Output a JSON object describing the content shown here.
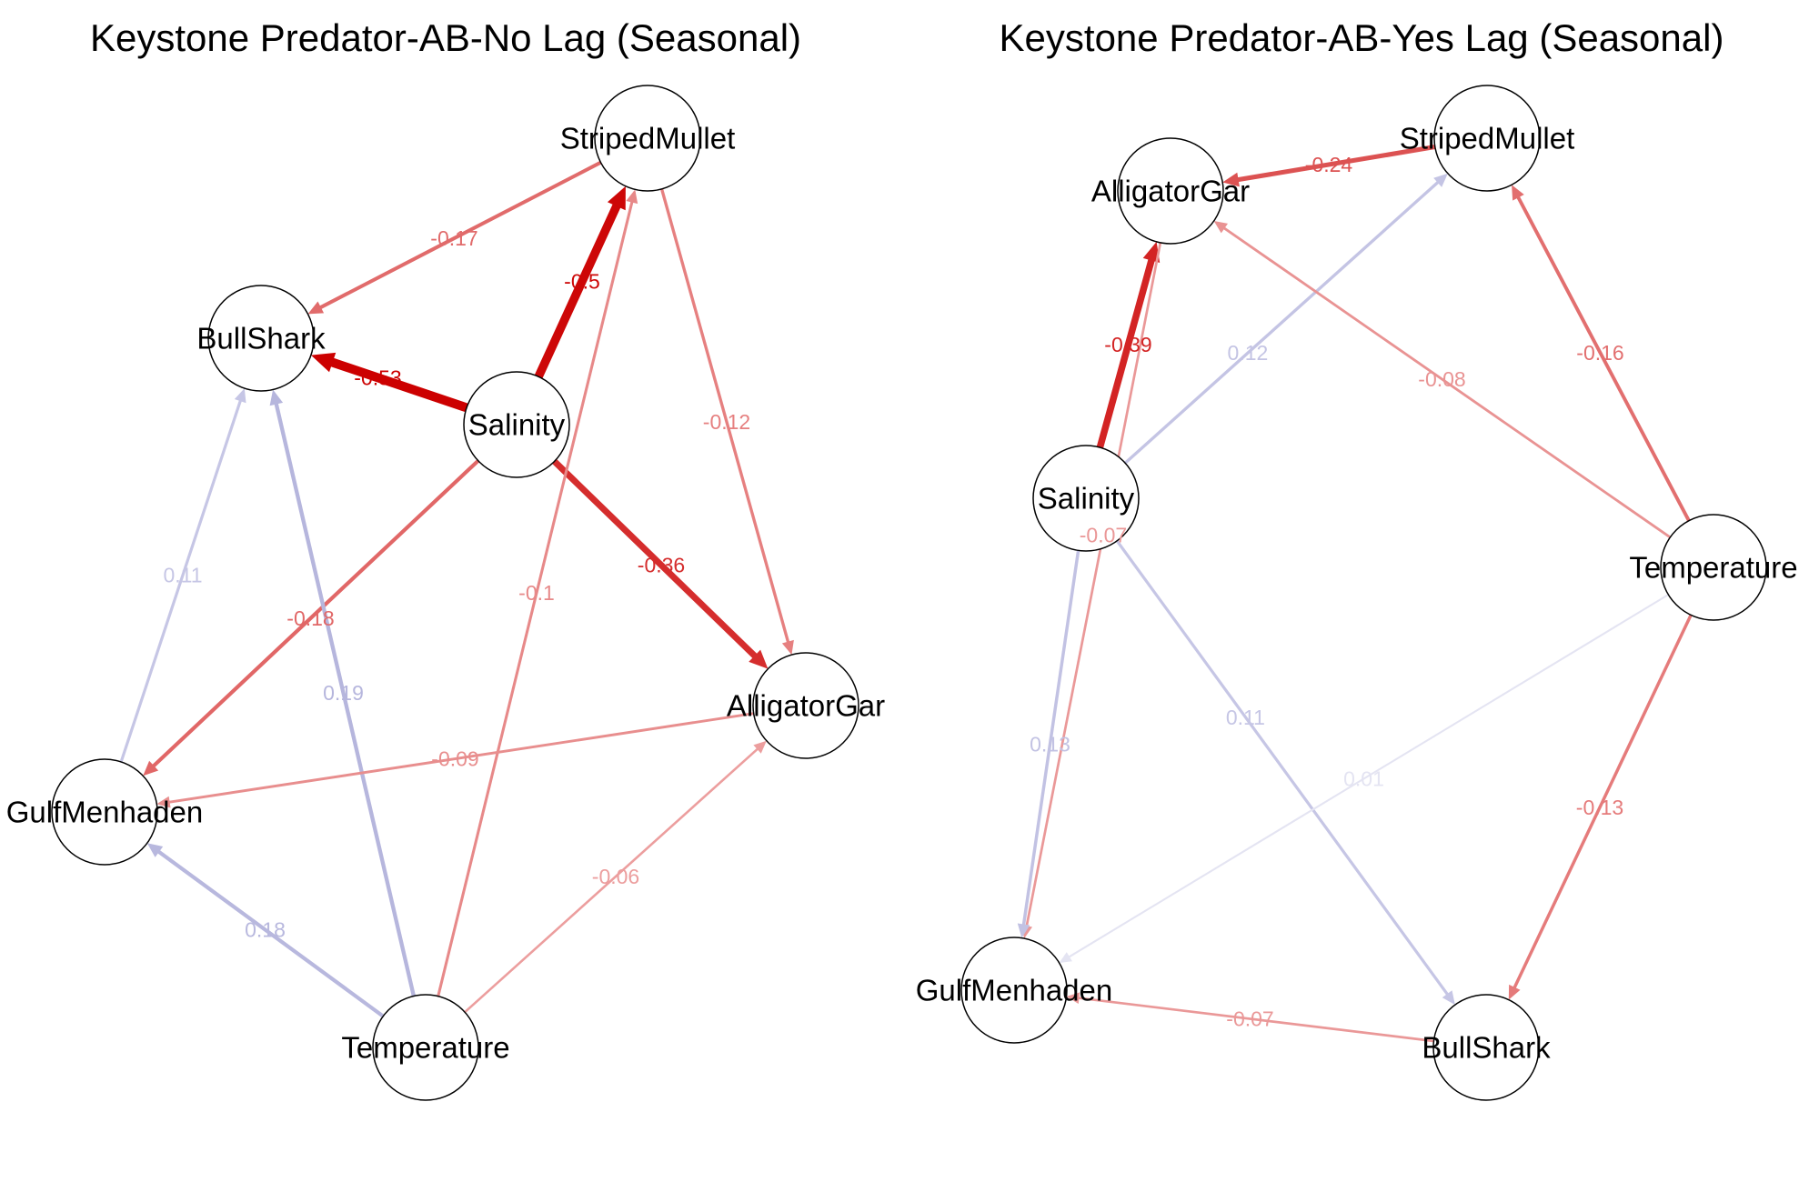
{
  "colors": {
    "negative": "#cc0000",
    "positive": "#8888c8",
    "background": "#ffffff",
    "node_stroke": "#000000"
  },
  "panels": [
    {
      "id": "no-lag",
      "title": "Keystone Predator-AB-No Lag (Seasonal)",
      "nodes": [
        {
          "id": "StripedMullet",
          "label": "StripedMullet"
        },
        {
          "id": "BullShark",
          "label": "BullShark"
        },
        {
          "id": "Salinity",
          "label": "Salinity"
        },
        {
          "id": "AlligatorGar",
          "label": "AlligatorGar"
        },
        {
          "id": "GulfMenhaden",
          "label": "GulfMenhaden"
        },
        {
          "id": "Temperature",
          "label": "Temperature"
        }
      ],
      "edges": [
        {
          "from": "StripedMullet",
          "to": "BullShark",
          "label": "-0.17",
          "value": -0.17
        },
        {
          "from": "Salinity",
          "to": "StripedMullet",
          "label": "-0.5",
          "value": -0.5
        },
        {
          "from": "Salinity",
          "to": "BullShark",
          "label": "-0.53",
          "value": -0.53
        },
        {
          "from": "StripedMullet",
          "to": "AlligatorGar",
          "label": "-0.12",
          "value": -0.12
        },
        {
          "from": "Salinity",
          "to": "AlligatorGar",
          "label": "-0.36",
          "value": -0.36
        },
        {
          "from": "Salinity",
          "to": "GulfMenhaden",
          "label": "-0.18",
          "value": -0.18
        },
        {
          "from": "GulfMenhaden",
          "to": "BullShark",
          "label": "0.11",
          "value": 0.11
        },
        {
          "from": "Temperature",
          "to": "StripedMullet",
          "label": "-0.1",
          "value": -0.1
        },
        {
          "from": "Temperature",
          "to": "BullShark",
          "label": "0.19",
          "value": 0.19
        },
        {
          "from": "AlligatorGar",
          "to": "GulfMenhaden",
          "label": "-0.09",
          "value": -0.09
        },
        {
          "from": "Temperature",
          "to": "GulfMenhaden",
          "label": "0.18",
          "value": 0.18
        },
        {
          "from": "Temperature",
          "to": "AlligatorGar",
          "label": "-0.06",
          "value": -0.06
        }
      ]
    },
    {
      "id": "yes-lag",
      "title": "Keystone Predator-AB-Yes Lag (Seasonal)",
      "nodes": [
        {
          "id": "StripedMullet",
          "label": "StripedMullet"
        },
        {
          "id": "AlligatorGar",
          "label": "AlligatorGar"
        },
        {
          "id": "Salinity",
          "label": "Salinity"
        },
        {
          "id": "Temperature",
          "label": "Temperature"
        },
        {
          "id": "GulfMenhaden",
          "label": "GulfMenhaden"
        },
        {
          "id": "BullShark",
          "label": "BullShark"
        }
      ],
      "edges": [
        {
          "from": "StripedMullet",
          "to": "AlligatorGar",
          "label": "-0.24",
          "value": -0.24
        },
        {
          "from": "Salinity",
          "to": "AlligatorGar",
          "label": "-0.39",
          "value": -0.39
        },
        {
          "from": "Salinity",
          "to": "StripedMullet",
          "label": "0.12",
          "value": 0.12
        },
        {
          "from": "Temperature",
          "to": "AlligatorGar",
          "label": "-0.08",
          "value": -0.08
        },
        {
          "from": "Temperature",
          "to": "StripedMullet",
          "label": "-0.16",
          "value": -0.16
        },
        {
          "from": "AlligatorGar",
          "to": "GulfMenhaden",
          "label": "-0.07",
          "value": -0.07
        },
        {
          "from": "Salinity",
          "to": "GulfMenhaden",
          "label": "0.13",
          "value": 0.13
        },
        {
          "from": "Salinity",
          "to": "BullShark",
          "label": "0.11",
          "value": 0.11
        },
        {
          "from": "Temperature",
          "to": "GulfMenhaden",
          "label": "0.01",
          "value": 0.01
        },
        {
          "from": "Temperature",
          "to": "BullShark",
          "label": "-0.13",
          "value": -0.13
        },
        {
          "from": "BullShark",
          "to": "GulfMenhaden",
          "label": "-0.07",
          "value": -0.07
        }
      ]
    }
  ]
}
